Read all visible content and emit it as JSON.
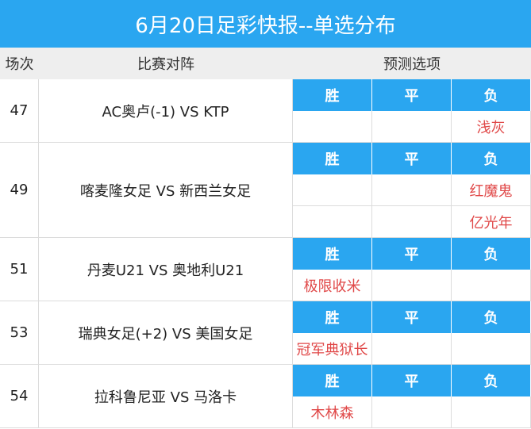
{
  "title": "6月20日足彩快报--单选分布",
  "headers": {
    "round": "场次",
    "match": "比赛对阵",
    "prediction": "预测选项"
  },
  "options": {
    "win": "胜",
    "draw": "平",
    "lose": "负"
  },
  "colors": {
    "header_blue": "#2aa6f0",
    "pick_red": "#e04848",
    "header_gray": "#eeeeee"
  },
  "rows": [
    {
      "num": "47",
      "match": "AC奥卢(-1) VS KTP",
      "picks": [
        {
          "col": "lose",
          "text": "浅灰"
        }
      ]
    },
    {
      "num": "49",
      "match": "喀麦隆女足 VS 新西兰女足",
      "picks": [
        {
          "col": "lose",
          "text": "红魔鬼"
        },
        {
          "col": "lose",
          "text": "亿光年"
        }
      ]
    },
    {
      "num": "51",
      "match": "丹麦U21 VS 奥地利U21",
      "picks": [
        {
          "col": "win",
          "text": "极限收米"
        }
      ]
    },
    {
      "num": "53",
      "match": "瑞典女足(+2) VS 美国女足",
      "picks": [
        {
          "col": "win",
          "text": "冠军典狱长"
        }
      ]
    },
    {
      "num": "54",
      "match": "拉科鲁尼亚 VS 马洛卡",
      "picks": [
        {
          "col": "win",
          "text": "木林森"
        }
      ]
    }
  ]
}
